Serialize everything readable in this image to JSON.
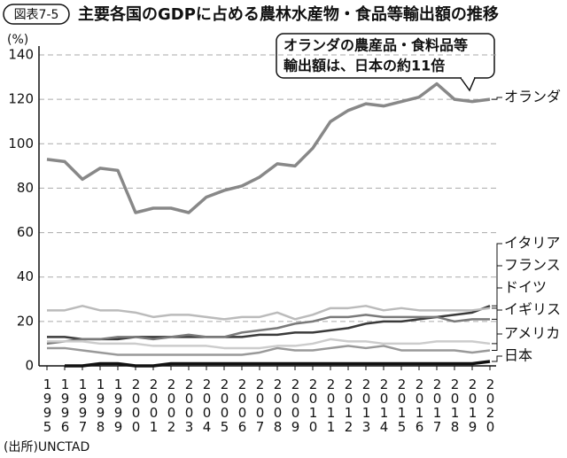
{
  "chart_data": {
    "type": "line",
    "badge": "図表7-5",
    "title": "主要各国のGDPに占める農林水産物・食品等輸出額の推移",
    "y_unit": "(%)",
    "source": "(出所)UNCTAD",
    "annotation": [
      "オランダの農産品・食料品等",
      "輸出額は、日本の約11倍"
    ],
    "categories": [
      "1995",
      "1996",
      "1997",
      "1998",
      "1999",
      "2000",
      "2001",
      "2002",
      "2003",
      "2004",
      "2005",
      "2006",
      "2007",
      "2008",
      "2009",
      "2010",
      "2011",
      "2012",
      "2013",
      "2014",
      "2015",
      "2016",
      "2017",
      "2018",
      "2019",
      "2020"
    ],
    "ylim": [
      0,
      140
    ],
    "yticks": [
      0,
      20,
      40,
      60,
      80,
      100,
      120,
      140
    ],
    "grid": true,
    "series": [
      {
        "name": "オランダ",
        "color": "#888888",
        "values": [
          93,
          92,
          84,
          89,
          88,
          69,
          71,
          71,
          69,
          76,
          79,
          81,
          85,
          91,
          90,
          98,
          110,
          115,
          118,
          117,
          119,
          121,
          127,
          120,
          119,
          120
        ]
      },
      {
        "name": "イタリア",
        "color": "#3a3a3a",
        "values": [
          13,
          13,
          12,
          12,
          12,
          13,
          13,
          13,
          13,
          13,
          13,
          13,
          14,
          14,
          15,
          15,
          16,
          17,
          19,
          20,
          20,
          21,
          22,
          23,
          24,
          27
        ]
      },
      {
        "name": "フランス",
        "color": "#bbbbbb",
        "values": [
          25,
          25,
          27,
          25,
          25,
          24,
          22,
          23,
          23,
          22,
          21,
          22,
          22,
          24,
          21,
          23,
          26,
          26,
          27,
          25,
          26,
          25,
          25,
          25,
          25,
          26
        ]
      },
      {
        "name": "ドイツ",
        "color": "#7a7a7a",
        "values": [
          10,
          11,
          12,
          12,
          13,
          13,
          12,
          13,
          14,
          13,
          13,
          15,
          16,
          17,
          19,
          20,
          22,
          22,
          23,
          22,
          22,
          22,
          22,
          20,
          21,
          21
        ]
      },
      {
        "name": "イギリス",
        "color": "#cccccc",
        "values": [
          11,
          11,
          11,
          10,
          10,
          10,
          9,
          9,
          9,
          9,
          8,
          8,
          8,
          9,
          9,
          10,
          12,
          11,
          11,
          10,
          10,
          10,
          11,
          11,
          11,
          10
        ]
      },
      {
        "name": "アメリカ",
        "color": "#999999",
        "values": [
          8,
          8,
          7,
          6,
          5,
          5,
          5,
          5,
          5,
          5,
          5,
          5,
          6,
          8,
          7,
          7,
          8,
          9,
          8,
          9,
          7,
          7,
          7,
          7,
          6,
          7
        ]
      },
      {
        "name": "日本",
        "color": "#111111",
        "values": [
          null,
          0,
          0,
          1,
          1,
          0,
          0,
          1,
          1,
          1,
          1,
          1,
          1,
          1,
          1,
          1,
          1,
          1,
          1,
          1,
          1,
          1,
          1,
          1,
          1,
          2
        ]
      }
    ]
  }
}
